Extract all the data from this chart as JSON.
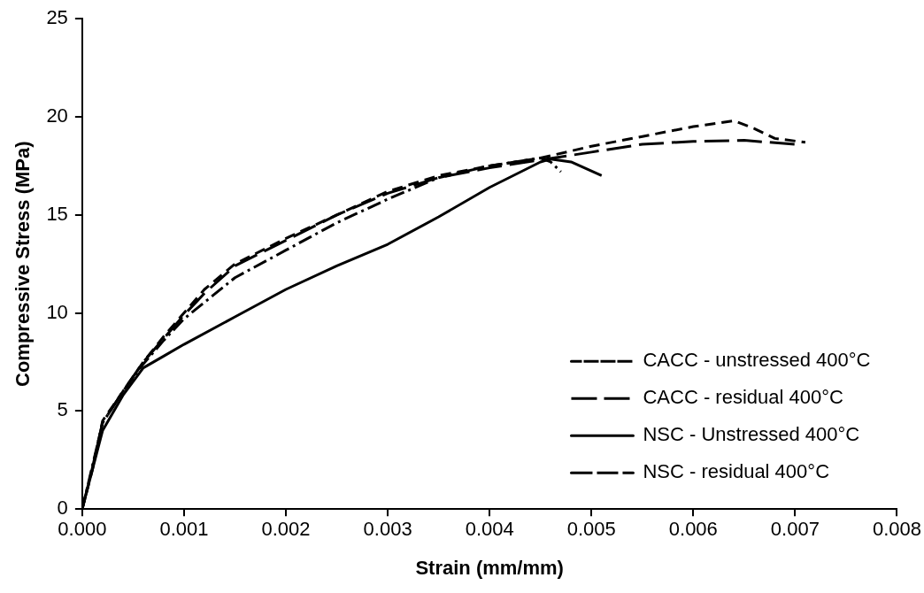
{
  "chart_data": {
    "type": "line",
    "xlabel": "Strain (mm/mm)",
    "ylabel": "Compressive Stress (MPa)",
    "xlim": [
      0,
      0.008
    ],
    "xticks": [
      {
        "value": 0,
        "label": "0.000"
      },
      {
        "value": 0.001,
        "label": "0.001"
      },
      {
        "value": 0.002,
        "label": "0.002"
      },
      {
        "value": 0.003,
        "label": "0.003"
      },
      {
        "value": 0.004,
        "label": "0.004"
      },
      {
        "value": 0.005,
        "label": "0.005"
      },
      {
        "value": 0.006,
        "label": "0.006"
      },
      {
        "value": 0.007,
        "label": "0.007"
      },
      {
        "value": 0.008,
        "label": "0.008"
      }
    ],
    "ylim": [
      0,
      25
    ],
    "yticks": [
      0,
      5,
      10,
      15,
      20,
      25
    ],
    "grid": false,
    "legend": "bottom right",
    "marker": "none",
    "series": [
      {
        "name": "CACC - unstressed 400°C",
        "color": "#000000",
        "line_style": "dashed",
        "x": [
          0,
          0.0001,
          0.0002,
          0.0004,
          0.0006,
          0.0008,
          0.001,
          0.0012,
          0.0015,
          0.002,
          0.0025,
          0.003,
          0.0035,
          0.004,
          0.0045,
          0.005,
          0.0055,
          0.006,
          0.0064,
          0.0066,
          0.0068,
          0.0071
        ],
        "values": [
          0,
          2,
          4.5,
          6,
          7.5,
          8.8,
          10,
          11.2,
          12.5,
          13.8,
          15,
          16.2,
          17,
          17.5,
          17.9,
          18.5,
          19,
          19.5,
          19.8,
          19.4,
          18.9,
          18.7
        ]
      },
      {
        "name": "CACC - residual 400°C",
        "color": "#000000",
        "line_style": "longdash",
        "x": [
          0,
          0.0001,
          0.0002,
          0.0004,
          0.0006,
          0.0008,
          0.001,
          0.0012,
          0.0015,
          0.002,
          0.0025,
          0.003,
          0.0035,
          0.004,
          0.0045,
          0.005,
          0.0055,
          0.006,
          0.0065,
          0.007
        ],
        "values": [
          0,
          2.1,
          4.4,
          6,
          7.5,
          8.7,
          9.9,
          11,
          12.4,
          13.7,
          15,
          16.1,
          16.9,
          17.4,
          17.8,
          18.2,
          18.6,
          18.75,
          18.8,
          18.6
        ]
      },
      {
        "name": "NSC - Unstressed 400°C",
        "color": "#000000",
        "line_style": "solid",
        "x": [
          0,
          0.0001,
          0.0002,
          0.0004,
          0.0006,
          0.0008,
          0.001,
          0.0015,
          0.002,
          0.0025,
          0.003,
          0.0035,
          0.004,
          0.0045,
          0.0046,
          0.0048,
          0.0051
        ],
        "values": [
          0,
          2,
          4,
          5.8,
          7.2,
          7.8,
          8.4,
          9.8,
          11.2,
          12.4,
          13.5,
          14.9,
          16.4,
          17.7,
          17.85,
          17.7,
          17
        ]
      },
      {
        "name": "NSC - residual 400°C",
        "color": "#000000",
        "line_style": "dashdot",
        "x": [
          0,
          0.0001,
          0.0002,
          0.0004,
          0.0006,
          0.0008,
          0.001,
          0.0015,
          0.002,
          0.0025,
          0.003,
          0.0035,
          0.004,
          0.0045,
          0.0046,
          0.0047
        ],
        "values": [
          0,
          2.2,
          4.4,
          6,
          7.4,
          8.6,
          9.7,
          11.8,
          13.2,
          14.6,
          15.8,
          16.9,
          17.5,
          17.9,
          17.7,
          17.2
        ]
      }
    ]
  }
}
